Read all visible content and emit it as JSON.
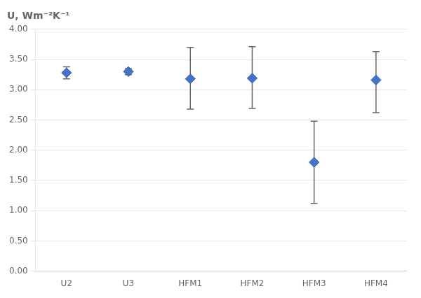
{
  "chart_data": {
    "type": "scatter",
    "ylabel": "U, Wm⁻²K⁻¹",
    "categories": [
      "U2",
      "U3",
      "HFM1",
      "HFM2",
      "HFM3",
      "HFM4"
    ],
    "values": [
      3.28,
      3.3,
      3.18,
      3.19,
      1.8,
      3.16
    ],
    "yerr_lower": [
      0.1,
      0.05,
      0.5,
      0.5,
      0.68,
      0.54
    ],
    "yerr_upper": [
      0.1,
      0.05,
      0.52,
      0.52,
      0.68,
      0.47
    ],
    "color": "#4472C4",
    "marker": "diamond",
    "ylim": [
      0.0,
      4.0
    ],
    "yticks": [
      {
        "value": 0,
        "label": "0.00"
      },
      {
        "value": 0.5,
        "label": "0.50"
      },
      {
        "value": 1,
        "label": "1.00"
      },
      {
        "value": 1.5,
        "label": "1.50"
      },
      {
        "value": 2,
        "label": "2.00"
      },
      {
        "value": 2.5,
        "label": "2.50"
      },
      {
        "value": 3,
        "label": "3.00"
      },
      {
        "value": 3.5,
        "label": "3.50"
      },
      {
        "value": 4,
        "label": "4.00"
      }
    ],
    "grid": true
  }
}
